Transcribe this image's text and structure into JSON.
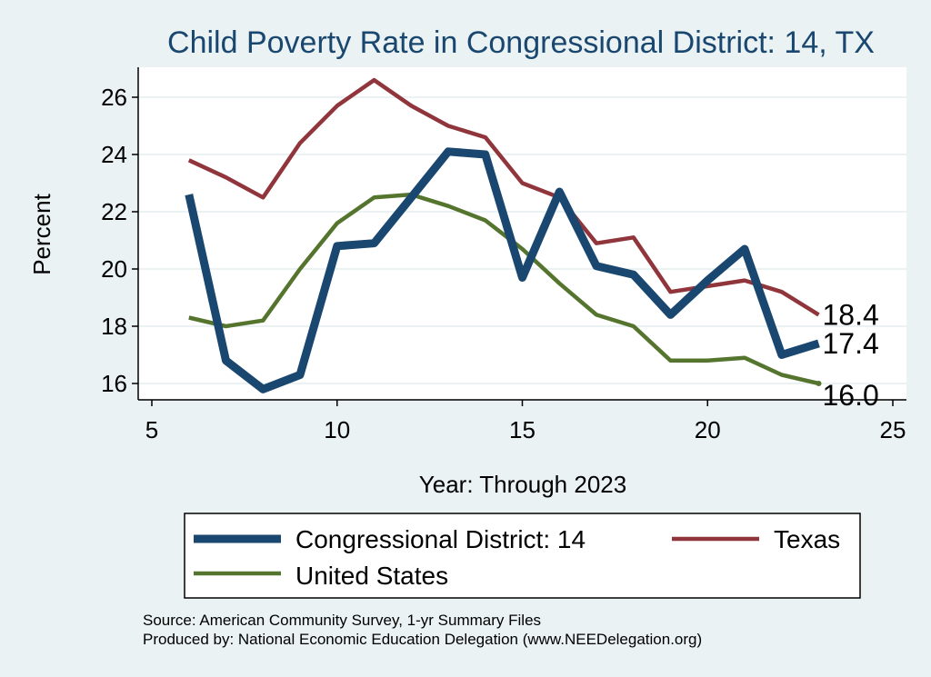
{
  "chart_data": {
    "type": "line",
    "title": "Child Poverty Rate in Congressional District:  14, TX",
    "xlabel": "Year: Through 2023",
    "ylabel": "Percent",
    "xlim": [
      5,
      25
    ],
    "ylim": [
      15.4,
      27.2
    ],
    "xticks": [
      5,
      10,
      15,
      20,
      25
    ],
    "yticks": [
      16,
      18,
      20,
      22,
      24,
      26
    ],
    "grid": true,
    "legend_position": "bottom",
    "x": [
      6,
      7,
      8,
      9,
      10,
      11,
      12,
      13,
      14,
      15,
      16,
      17,
      18,
      19,
      20,
      21,
      22,
      23
    ],
    "series": [
      {
        "name": "Congressional District:  14",
        "color": "#1a476f",
        "values": [
          22.6,
          16.8,
          15.8,
          16.3,
          20.8,
          20.9,
          22.5,
          24.1,
          24.0,
          19.7,
          22.7,
          20.1,
          19.8,
          18.4,
          19.6,
          20.7,
          17.0,
          17.4
        ],
        "end_label": "17.4"
      },
      {
        "name": "Texas",
        "color": "#90353b",
        "values": [
          23.8,
          23.2,
          22.5,
          24.4,
          25.7,
          26.6,
          25.7,
          25.0,
          24.6,
          23.0,
          22.5,
          20.9,
          21.1,
          19.2,
          19.4,
          19.6,
          19.2,
          18.4
        ],
        "end_label": "18.4"
      },
      {
        "name": "United States",
        "color": "#55752f",
        "values": [
          18.3,
          18.0,
          18.2,
          20.0,
          21.6,
          22.5,
          22.6,
          22.2,
          21.7,
          20.7,
          19.5,
          18.4,
          18.0,
          16.8,
          16.8,
          16.9,
          16.3,
          16.0
        ],
        "end_label": "16.0"
      }
    ],
    "source_lines": [
      "Source: American Community Survey, 1-yr Summary Files",
      "Produced by: National Economic Education Delegation (www.NEEDelegation.org)"
    ]
  }
}
